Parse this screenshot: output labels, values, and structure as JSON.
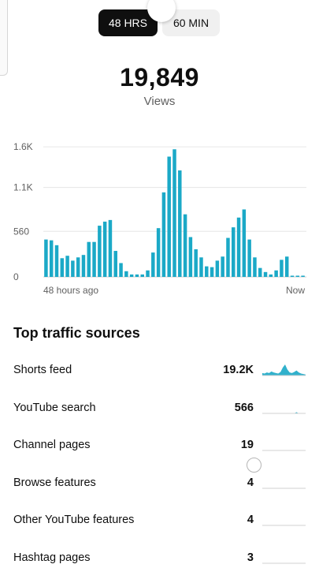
{
  "toggle": {
    "active_label": "48 HRS",
    "inactive_label": "60 MIN"
  },
  "summary": {
    "views": "19,849",
    "views_label": "Views"
  },
  "chart_data": {
    "type": "bar",
    "title": "",
    "xlabel": "",
    "ylabel": "",
    "yticks": [
      "1.6K",
      "1.1K",
      "560",
      "0"
    ],
    "ytick_values": [
      1600,
      1100,
      560,
      0
    ],
    "ylim": [
      0,
      1650
    ],
    "x_start_label": "48 hours ago",
    "x_end_label": "Now",
    "color": "#1ba9c7",
    "grid": true,
    "values": [
      460,
      450,
      390,
      230,
      260,
      200,
      240,
      270,
      430,
      430,
      630,
      680,
      700,
      320,
      170,
      70,
      30,
      30,
      30,
      80,
      300,
      600,
      1040,
      1480,
      1570,
      1310,
      770,
      490,
      340,
      240,
      130,
      120,
      200,
      250,
      480,
      610,
      730,
      830,
      460,
      240,
      110,
      60,
      30,
      80,
      210,
      250,
      15,
      15,
      15
    ]
  },
  "traffic": {
    "title": "Top traffic sources",
    "sources": [
      {
        "name": "Shorts feed",
        "value": "19.2K",
        "spark": [
          5,
          4,
          6,
          5,
          8,
          6,
          5,
          4,
          7,
          16,
          22,
          12,
          6,
          5,
          7,
          10,
          6,
          4,
          3,
          2
        ]
      },
      {
        "name": "YouTube search",
        "value": "566",
        "spark": [
          0,
          0,
          0,
          0,
          0,
          0,
          0,
          0,
          0,
          0,
          0,
          0,
          0,
          0,
          0,
          1,
          0,
          0,
          0,
          0
        ]
      },
      {
        "name": "Channel pages",
        "value": "19",
        "spark": [
          0,
          0,
          0,
          0,
          0,
          0,
          0,
          0,
          0,
          0,
          0,
          0,
          0,
          0,
          0,
          0,
          0,
          0,
          0,
          0
        ]
      },
      {
        "name": "Browse features",
        "value": "4",
        "spark": [
          0,
          0,
          0,
          0,
          0,
          0,
          0,
          0,
          0,
          0,
          0,
          0,
          0,
          0,
          0,
          0,
          0,
          0,
          0,
          0
        ]
      },
      {
        "name": "Other YouTube features",
        "value": "4",
        "spark": [
          0,
          0,
          0,
          0,
          0,
          0,
          0,
          0,
          0,
          0,
          0,
          0,
          0,
          0,
          0,
          0,
          0,
          0,
          0,
          0
        ]
      },
      {
        "name": "Hashtag pages",
        "value": "3",
        "spark": [
          0,
          0,
          0,
          0,
          0,
          0,
          0,
          0,
          0,
          0,
          0,
          0,
          0,
          0,
          0,
          0,
          0,
          0,
          0,
          0
        ]
      }
    ]
  }
}
